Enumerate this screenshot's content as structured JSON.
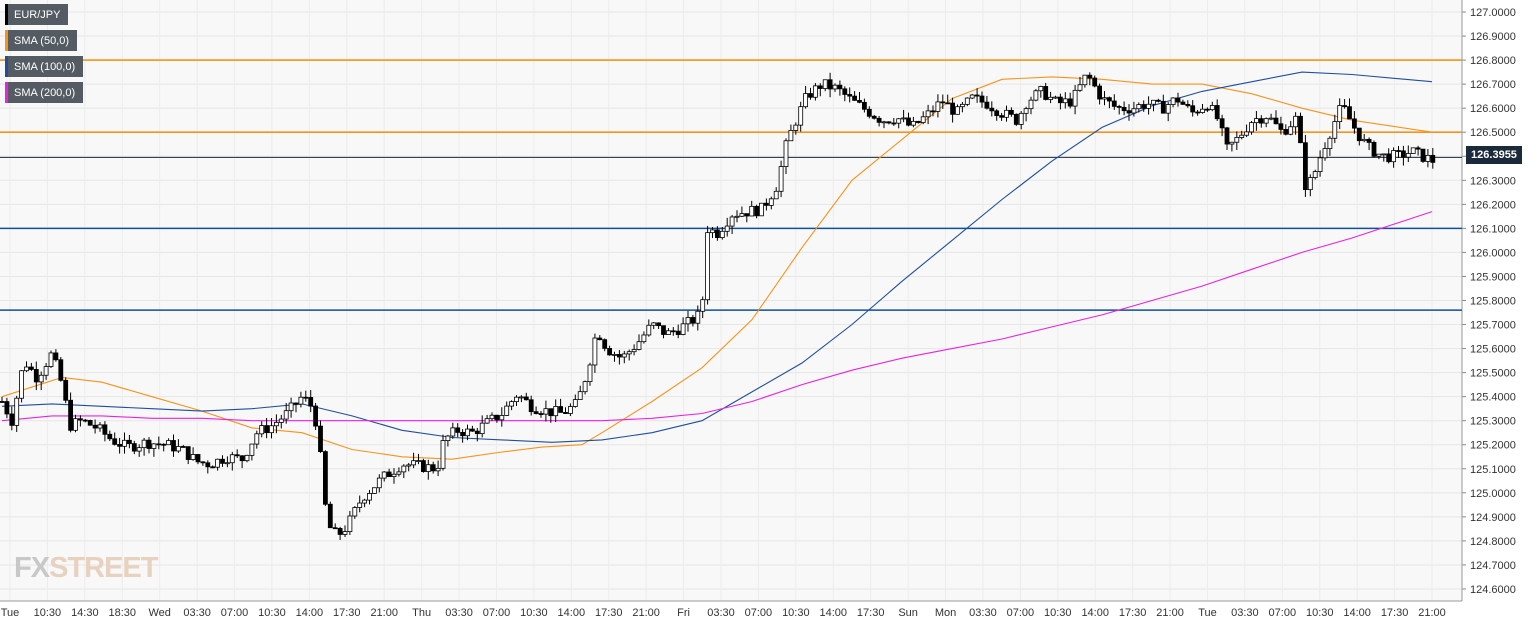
{
  "chart_data": {
    "type": "candlestick",
    "symbol": "EUR/JPY",
    "ylim": [
      124.55,
      127.05
    ],
    "y_ticks": [
      "127.0000",
      "126.9000",
      "126.8000",
      "126.7000",
      "126.6000",
      "126.5000",
      "126.4000",
      "126.3000",
      "126.2000",
      "126.1000",
      "126.0000",
      "125.9000",
      "125.8000",
      "125.7000",
      "125.6000",
      "125.5000",
      "125.4000",
      "125.3000",
      "125.2000",
      "125.1000",
      "125.0000",
      "124.9000",
      "124.8000",
      "124.7000",
      "124.6000"
    ],
    "x_ticks": [
      "Tue",
      "10:30",
      "14:30",
      "18:30",
      "Wed",
      "03:30",
      "07:00",
      "10:30",
      "14:00",
      "17:30",
      "21:00",
      "Thu",
      "03:30",
      "07:00",
      "10:30",
      "14:00",
      "17:30",
      "21:00",
      "Fri",
      "03:30",
      "07:00",
      "10:30",
      "14:00",
      "17:30",
      "Sun",
      "Mon",
      "03:30",
      "07:00",
      "10:30",
      "14:00",
      "17:30",
      "21:00",
      "Tue",
      "03:30",
      "07:00",
      "10:30",
      "14:00",
      "17:30",
      "21:00"
    ],
    "last_price": 126.3955,
    "last_price_label": "126.3955",
    "colors": {
      "up": "#ffffff",
      "down": "#000000",
      "sma50": "#f7931a",
      "sma100": "#1f4e9c",
      "sma200": "#e823e0",
      "resistance": "#f7931a",
      "support": "#0d4fa0",
      "current": "#1b2a3a"
    },
    "horizontal_levels": [
      {
        "kind": "resistance",
        "value": 126.8
      },
      {
        "kind": "resistance",
        "value": 126.5
      },
      {
        "kind": "support",
        "value": 126.1
      },
      {
        "kind": "support",
        "value": 125.76
      }
    ],
    "price_path": [
      [
        0,
        125.38
      ],
      [
        10,
        125.3
      ],
      [
        22,
        125.55
      ],
      [
        35,
        125.48
      ],
      [
        50,
        125.58
      ],
      [
        60,
        125.45
      ],
      [
        68,
        125.28
      ],
      [
        80,
        125.3
      ],
      [
        95,
        125.27
      ],
      [
        110,
        125.22
      ],
      [
        125,
        125.19
      ],
      [
        145,
        125.21
      ],
      [
        165,
        125.2
      ],
      [
        180,
        125.18
      ],
      [
        195,
        125.13
      ],
      [
        208,
        125.12
      ],
      [
        225,
        125.15
      ],
      [
        240,
        125.14
      ],
      [
        255,
        125.25
      ],
      [
        270,
        125.28
      ],
      [
        285,
        125.33
      ],
      [
        300,
        125.4
      ],
      [
        312,
        125.35
      ],
      [
        320,
        125.1
      ],
      [
        325,
        124.87
      ],
      [
        335,
        124.82
      ],
      [
        345,
        124.86
      ],
      [
        360,
        124.98
      ],
      [
        380,
        125.06
      ],
      [
        400,
        125.12
      ],
      [
        420,
        125.11
      ],
      [
        435,
        125.1
      ],
      [
        442,
        125.22
      ],
      [
        455,
        125.26
      ],
      [
        470,
        125.25
      ],
      [
        485,
        125.29
      ],
      [
        500,
        125.33
      ],
      [
        515,
        125.41
      ],
      [
        530,
        125.36
      ],
      [
        545,
        125.34
      ],
      [
        560,
        125.33
      ],
      [
        575,
        125.37
      ],
      [
        585,
        125.5
      ],
      [
        595,
        125.68
      ],
      [
        605,
        125.6
      ],
      [
        620,
        125.56
      ],
      [
        635,
        125.62
      ],
      [
        650,
        125.7
      ],
      [
        665,
        125.66
      ],
      [
        680,
        125.69
      ],
      [
        695,
        125.73
      ],
      [
        700,
        125.76
      ],
      [
        705,
        126.1
      ],
      [
        715,
        126.08
      ],
      [
        730,
        126.16
      ],
      [
        745,
        126.17
      ],
      [
        760,
        126.18
      ],
      [
        775,
        126.28
      ],
      [
        785,
        126.46
      ],
      [
        795,
        126.56
      ],
      [
        805,
        126.65
      ],
      [
        820,
        126.7
      ],
      [
        835,
        126.68
      ],
      [
        850,
        126.63
      ],
      [
        865,
        126.59
      ],
      [
        880,
        126.55
      ],
      [
        895,
        126.56
      ],
      [
        910,
        126.52
      ],
      [
        925,
        126.57
      ],
      [
        940,
        126.63
      ],
      [
        955,
        126.58
      ],
      [
        970,
        126.64
      ],
      [
        985,
        126.62
      ],
      [
        1000,
        126.58
      ],
      [
        1015,
        126.55
      ],
      [
        1025,
        126.63
      ],
      [
        1040,
        126.67
      ],
      [
        1055,
        126.62
      ],
      [
        1070,
        126.63
      ],
      [
        1085,
        126.74
      ],
      [
        1100,
        126.64
      ],
      [
        1115,
        126.6
      ],
      [
        1130,
        126.6
      ],
      [
        1145,
        126.62
      ],
      [
        1160,
        126.6
      ],
      [
        1175,
        126.64
      ],
      [
        1190,
        126.58
      ],
      [
        1205,
        126.62
      ],
      [
        1215,
        126.56
      ],
      [
        1225,
        126.43
      ],
      [
        1235,
        126.47
      ],
      [
        1250,
        126.55
      ],
      [
        1265,
        126.57
      ],
      [
        1280,
        126.5
      ],
      [
        1295,
        126.56
      ],
      [
        1303,
        126.28
      ],
      [
        1310,
        126.3
      ],
      [
        1320,
        126.42
      ],
      [
        1330,
        126.52
      ],
      [
        1340,
        126.61
      ],
      [
        1355,
        126.5
      ],
      [
        1365,
        126.44
      ],
      [
        1380,
        126.4
      ],
      [
        1395,
        126.4
      ],
      [
        1410,
        126.42
      ],
      [
        1420,
        126.4
      ],
      [
        1432,
        126.38
      ]
    ],
    "sma_lines": [
      {
        "name": "SMA (50,0)",
        "key": "sma50",
        "points": [
          [
            0,
            125.4
          ],
          [
            60,
            125.48
          ],
          [
            100,
            125.46
          ],
          [
            150,
            125.4
          ],
          [
            200,
            125.34
          ],
          [
            250,
            125.27
          ],
          [
            300,
            125.25
          ],
          [
            350,
            125.18
          ],
          [
            400,
            125.15
          ],
          [
            450,
            125.14
          ],
          [
            500,
            125.17
          ],
          [
            540,
            125.19
          ],
          [
            580,
            125.2
          ],
          [
            600,
            125.25
          ],
          [
            650,
            125.38
          ],
          [
            700,
            125.52
          ],
          [
            750,
            125.72
          ],
          [
            800,
            126.02
          ],
          [
            850,
            126.3
          ],
          [
            900,
            126.47
          ],
          [
            950,
            126.64
          ],
          [
            1000,
            126.72
          ],
          [
            1050,
            126.73
          ],
          [
            1100,
            126.72
          ],
          [
            1150,
            126.7
          ],
          [
            1200,
            126.7
          ],
          [
            1250,
            126.66
          ],
          [
            1300,
            126.6
          ],
          [
            1350,
            126.55
          ],
          [
            1430,
            126.5
          ]
        ]
      },
      {
        "name": "SMA (100,0)",
        "key": "sma100",
        "points": [
          [
            0,
            125.36
          ],
          [
            50,
            125.37
          ],
          [
            100,
            125.36
          ],
          [
            150,
            125.35
          ],
          [
            200,
            125.34
          ],
          [
            250,
            125.35
          ],
          [
            300,
            125.37
          ],
          [
            350,
            125.32
          ],
          [
            400,
            125.26
          ],
          [
            450,
            125.23
          ],
          [
            500,
            125.22
          ],
          [
            550,
            125.21
          ],
          [
            600,
            125.22
          ],
          [
            650,
            125.25
          ],
          [
            700,
            125.3
          ],
          [
            750,
            125.42
          ],
          [
            800,
            125.54
          ],
          [
            850,
            125.7
          ],
          [
            900,
            125.88
          ],
          [
            950,
            126.05
          ],
          [
            1000,
            126.22
          ],
          [
            1050,
            126.38
          ],
          [
            1100,
            126.52
          ],
          [
            1150,
            126.61
          ],
          [
            1200,
            126.67
          ],
          [
            1250,
            126.71
          ],
          [
            1300,
            126.75
          ],
          [
            1350,
            126.74
          ],
          [
            1430,
            126.71
          ]
        ]
      },
      {
        "name": "SMA (200,0)",
        "key": "sma200",
        "points": [
          [
            0,
            125.3
          ],
          [
            50,
            125.32
          ],
          [
            100,
            125.32
          ],
          [
            150,
            125.31
          ],
          [
            200,
            125.31
          ],
          [
            250,
            125.3
          ],
          [
            300,
            125.3
          ],
          [
            350,
            125.3
          ],
          [
            400,
            125.3
          ],
          [
            450,
            125.3
          ],
          [
            500,
            125.3
          ],
          [
            550,
            125.3
          ],
          [
            600,
            125.3
          ],
          [
            650,
            125.31
          ],
          [
            700,
            125.33
          ],
          [
            750,
            125.38
          ],
          [
            800,
            125.45
          ],
          [
            850,
            125.51
          ],
          [
            900,
            125.56
          ],
          [
            950,
            125.6
          ],
          [
            1000,
            125.64
          ],
          [
            1050,
            125.69
          ],
          [
            1100,
            125.74
          ],
          [
            1150,
            125.8
          ],
          [
            1200,
            125.86
          ],
          [
            1250,
            125.93
          ],
          [
            1300,
            126.0
          ],
          [
            1350,
            126.06
          ],
          [
            1430,
            126.17
          ]
        ]
      }
    ]
  },
  "legend": [
    {
      "label": "EUR/JPY",
      "color_key": "current"
    },
    {
      "label": "SMA (50,0)",
      "color_key": "sma50"
    },
    {
      "label": "SMA (100,0)",
      "color_key": "sma100"
    },
    {
      "label": "SMA (200,0)",
      "color_key": "sma200"
    }
  ],
  "logo": {
    "fx": "FX",
    "street": "STREET"
  }
}
